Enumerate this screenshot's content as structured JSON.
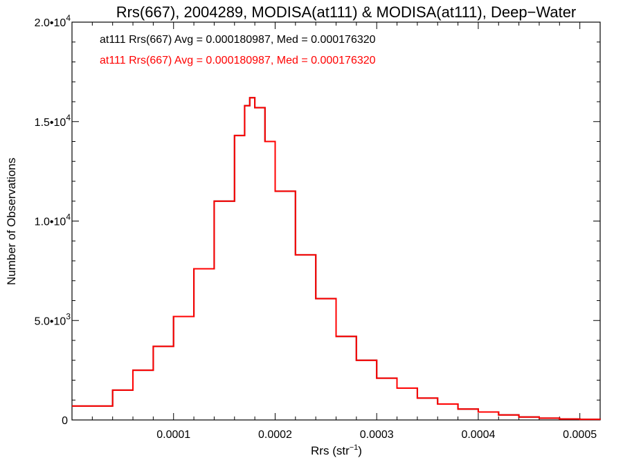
{
  "chart_data": {
    "type": "line",
    "title": "Rrs(667), 2004289, MODISA(at111) & MODISA(at111), Deep−Water",
    "xlabel": "Rrs (str",
    "xlabel_sup": "−1",
    "xlabel_close": ")",
    "ylabel": "Number of Observations",
    "xlim": [
      0.0,
      0.00052
    ],
    "ylim": [
      0,
      20000
    ],
    "x_ticks": [
      {
        "value": 0.0001,
        "label": "0.0001"
      },
      {
        "value": 0.0002,
        "label": "0.0002"
      },
      {
        "value": 0.0003,
        "label": "0.0003"
      },
      {
        "value": 0.0004,
        "label": "0.0004"
      },
      {
        "value": 0.0005,
        "label": "0.0005"
      }
    ],
    "y_ticks": [
      {
        "value": 0,
        "mant": "0",
        "exp": ""
      },
      {
        "value": 5000,
        "mant": "5.0•10",
        "exp": "3"
      },
      {
        "value": 10000,
        "mant": "1.0•10",
        "exp": "4"
      },
      {
        "value": 15000,
        "mant": "1.5•10",
        "exp": "4"
      },
      {
        "value": 20000,
        "mant": "2.0•10",
        "exp": "4"
      }
    ],
    "grid": false,
    "annotations": [
      {
        "text": "at111 Rrs(667) Avg = 0.000180987, Med = 0.000176320",
        "color": "#000000"
      },
      {
        "text": "at111 Rrs(667) Avg = 0.000180987, Med = 0.000176320",
        "color": "#ff0000"
      }
    ],
    "series": [
      {
        "color": "#000000",
        "style": "step",
        "x": [
          0.0,
          4e-05,
          6e-05,
          8e-05,
          0.0001,
          0.00012,
          0.00014,
          0.00016,
          0.00017,
          0.000175,
          0.00018,
          0.00019,
          0.0002,
          0.00022,
          0.00024,
          0.00026,
          0.00028,
          0.0003,
          0.00032,
          0.00034,
          0.00036,
          0.00038,
          0.0004,
          0.00042,
          0.00044,
          0.00046,
          0.00048,
          0.0005,
          0.00052
        ],
        "y": [
          700,
          1500,
          2500,
          3700,
          5200,
          7600,
          11000,
          14300,
          15800,
          16200,
          15700,
          14000,
          11500,
          8300,
          6100,
          4200,
          3000,
          2100,
          1600,
          1100,
          800,
          550,
          400,
          250,
          150,
          90,
          50,
          30,
          20
        ]
      },
      {
        "color": "#ff0000",
        "style": "step",
        "x": [
          0.0,
          4e-05,
          6e-05,
          8e-05,
          0.0001,
          0.00012,
          0.00014,
          0.00016,
          0.00017,
          0.000175,
          0.00018,
          0.00019,
          0.0002,
          0.00022,
          0.00024,
          0.00026,
          0.00028,
          0.0003,
          0.00032,
          0.00034,
          0.00036,
          0.00038,
          0.0004,
          0.00042,
          0.00044,
          0.00046,
          0.00048,
          0.0005,
          0.00052
        ],
        "y": [
          700,
          1500,
          2500,
          3700,
          5200,
          7600,
          11000,
          14300,
          15800,
          16200,
          15700,
          14000,
          11500,
          8300,
          6100,
          4200,
          3000,
          2100,
          1600,
          1100,
          800,
          550,
          400,
          250,
          150,
          90,
          50,
          30,
          20
        ]
      }
    ]
  }
}
